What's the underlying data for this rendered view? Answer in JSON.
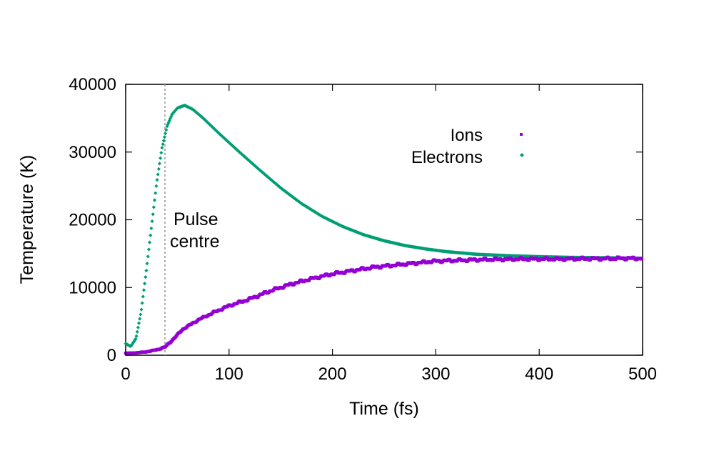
{
  "chart_data": {
    "type": "scatter",
    "title": "",
    "xlabel": "Time (fs)",
    "ylabel": "Temperature (K)",
    "xlim": [
      0,
      500
    ],
    "ylim": [
      0,
      40000
    ],
    "xticks": [
      0,
      100,
      200,
      300,
      400,
      500
    ],
    "yticks": [
      0,
      10000,
      20000,
      30000,
      40000
    ],
    "grid": false,
    "legend_position": "top-right",
    "annotation": {
      "lines": [
        "Pulse",
        "centre"
      ],
      "x": 38,
      "style": "dotted vertical line"
    },
    "series": [
      {
        "name": "Ions",
        "color": "#9400d3",
        "x": [
          0,
          10,
          20,
          30,
          38,
          45,
          55,
          70,
          85,
          100,
          120,
          140,
          160,
          180,
          200,
          220,
          240,
          260,
          280,
          300,
          320,
          340,
          360,
          380,
          400,
          420,
          440,
          460,
          480,
          500
        ],
        "y": [
          300,
          350,
          500,
          800,
          1200,
          2200,
          3800,
          5200,
          6300,
          7300,
          8300,
          9500,
          10500,
          11300,
          12000,
          12500,
          13000,
          13300,
          13600,
          13900,
          14000,
          14100,
          14150,
          14200,
          14200,
          14200,
          14250,
          14250,
          14300,
          14300
        ]
      },
      {
        "name": "Electrons",
        "color": "#009e73",
        "x": [
          0,
          5,
          10,
          15,
          20,
          25,
          30,
          35,
          40,
          45,
          50,
          57,
          65,
          75,
          90,
          110,
          130,
          150,
          170,
          190,
          210,
          230,
          250,
          270,
          290,
          310,
          340,
          370,
          400,
          430,
          460,
          500
        ],
        "y": [
          1700,
          1300,
          2500,
          6500,
          12500,
          19000,
          25500,
          30500,
          33800,
          35600,
          36500,
          36900,
          36300,
          35000,
          32800,
          30000,
          27300,
          24700,
          22400,
          20500,
          19000,
          17800,
          16900,
          16200,
          15700,
          15300,
          14900,
          14700,
          14550,
          14450,
          14400,
          14300
        ]
      }
    ]
  }
}
